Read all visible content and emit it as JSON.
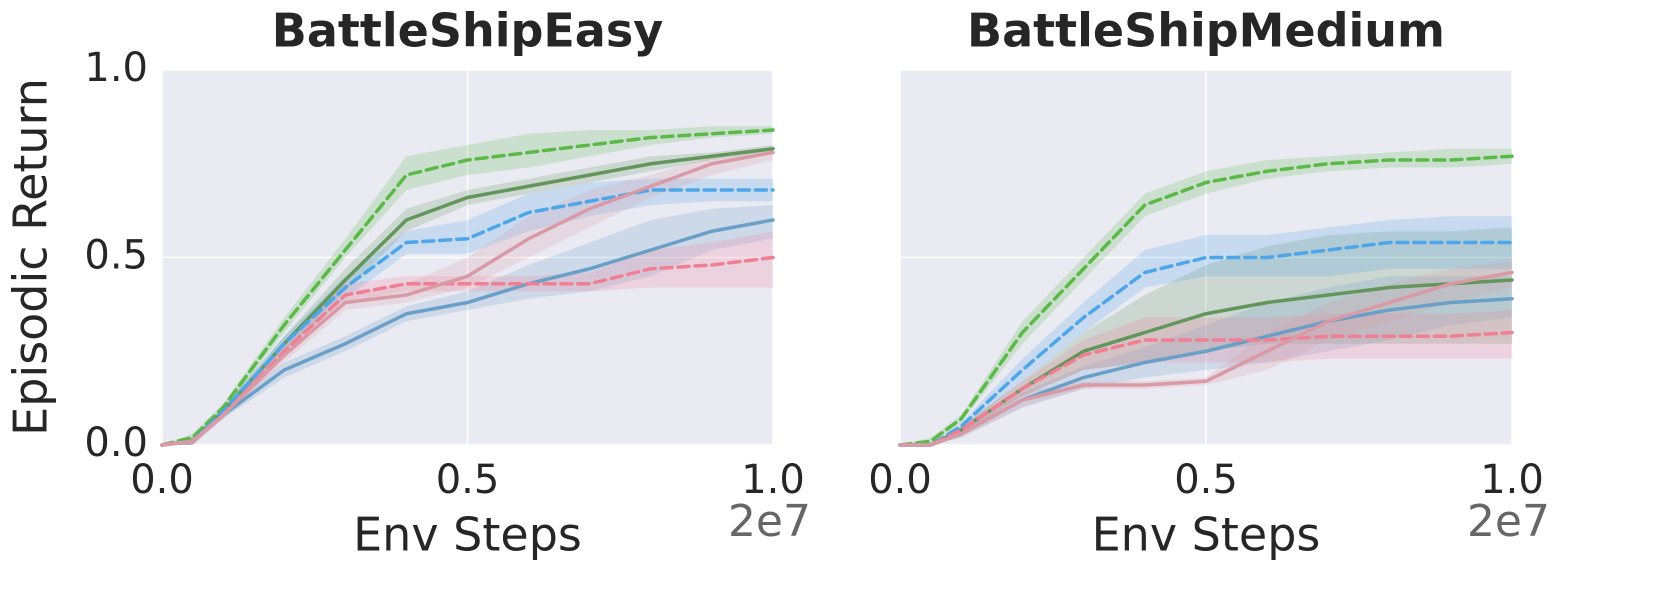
{
  "chart_data": [
    {
      "type": "line",
      "title": "BattleShipEasy",
      "xlabel": "Env Steps",
      "ylabel": "Episodic Return",
      "x_offset_label": "2e7",
      "x": [
        0,
        0.05,
        0.1,
        0.2,
        0.3,
        0.4,
        0.5,
        0.6,
        0.7,
        0.8,
        0.9,
        1.0
      ],
      "xlim": [
        0,
        1.0
      ],
      "ylim": [
        0,
        1.0
      ],
      "xticks": [
        {
          "value": 0,
          "label": "0.0"
        },
        0.5,
        {
          "value": 1.0,
          "label": "1.0"
        }
      ],
      "yticks": [
        {
          "value": 0,
          "label": "0.0"
        },
        0.5,
        {
          "value": 1.0,
          "label": "1.0"
        }
      ],
      "ytick_labels": true,
      "grid": true,
      "series": [
        {
          "color": "#5ab947",
          "dashed": true,
          "values": [
            0,
            0.02,
            0.1,
            0.32,
            0.52,
            0.72,
            0.76,
            0.78,
            0.8,
            0.82,
            0.83,
            0.84
          ],
          "lower": [
            0,
            0.01,
            0.09,
            0.3,
            0.5,
            0.68,
            0.72,
            0.74,
            0.77,
            0.8,
            0.82,
            0.83
          ],
          "upper": [
            0,
            0.03,
            0.11,
            0.34,
            0.55,
            0.77,
            0.8,
            0.83,
            0.84,
            0.84,
            0.85,
            0.85
          ]
        },
        {
          "color": "#62965a",
          "dashed": false,
          "values": [
            0,
            0.01,
            0.09,
            0.27,
            0.44,
            0.6,
            0.66,
            0.69,
            0.72,
            0.75,
            0.77,
            0.79
          ],
          "lower": [
            0,
            0,
            0.08,
            0.25,
            0.41,
            0.57,
            0.64,
            0.67,
            0.7,
            0.73,
            0.76,
            0.78
          ],
          "upper": [
            0,
            0.02,
            0.1,
            0.29,
            0.47,
            0.63,
            0.68,
            0.71,
            0.74,
            0.77,
            0.78,
            0.8
          ]
        },
        {
          "color": "#4da6e8",
          "dashed": true,
          "values": [
            0,
            0.01,
            0.09,
            0.27,
            0.42,
            0.54,
            0.55,
            0.62,
            0.65,
            0.68,
            0.68,
            0.68
          ],
          "lower": [
            0,
            0,
            0.08,
            0.25,
            0.39,
            0.51,
            0.51,
            0.57,
            0.61,
            0.64,
            0.65,
            0.65
          ],
          "upper": [
            0,
            0.02,
            0.1,
            0.29,
            0.45,
            0.57,
            0.6,
            0.67,
            0.7,
            0.71,
            0.71,
            0.71
          ]
        },
        {
          "color": "#6a9fc8",
          "dashed": false,
          "values": [
            0,
            0.01,
            0.08,
            0.2,
            0.27,
            0.35,
            0.38,
            0.43,
            0.47,
            0.52,
            0.57,
            0.6
          ],
          "lower": [
            0,
            0,
            0.07,
            0.18,
            0.25,
            0.33,
            0.36,
            0.39,
            0.41,
            0.45,
            0.52,
            0.55
          ],
          "upper": [
            0,
            0.02,
            0.09,
            0.22,
            0.29,
            0.37,
            0.41,
            0.48,
            0.54,
            0.6,
            0.63,
            0.64
          ]
        },
        {
          "color": "#f07f94",
          "dashed": true,
          "values": [
            0,
            0.01,
            0.08,
            0.25,
            0.4,
            0.43,
            0.43,
            0.43,
            0.43,
            0.47,
            0.48,
            0.5
          ],
          "lower": [
            0,
            0,
            0.07,
            0.23,
            0.38,
            0.41,
            0.41,
            0.41,
            0.41,
            0.42,
            0.42,
            0.42
          ],
          "upper": [
            0,
            0.02,
            0.09,
            0.27,
            0.43,
            0.45,
            0.45,
            0.45,
            0.46,
            0.52,
            0.54,
            0.57
          ]
        },
        {
          "color": "#d99aa6",
          "dashed": false,
          "values": [
            0,
            0.01,
            0.08,
            0.24,
            0.38,
            0.4,
            0.45,
            0.55,
            0.63,
            0.69,
            0.75,
            0.78
          ],
          "lower": [
            0,
            0,
            0.07,
            0.22,
            0.36,
            0.38,
            0.42,
            0.5,
            0.58,
            0.66,
            0.72,
            0.76
          ],
          "upper": [
            0,
            0.02,
            0.09,
            0.26,
            0.4,
            0.43,
            0.5,
            0.61,
            0.68,
            0.72,
            0.77,
            0.79
          ]
        }
      ]
    },
    {
      "type": "line",
      "title": "BattleShipMedium",
      "xlabel": "Env Steps",
      "x_offset_label": "2e7",
      "x": [
        0,
        0.05,
        0.1,
        0.2,
        0.3,
        0.4,
        0.5,
        0.6,
        0.7,
        0.8,
        0.9,
        1.0
      ],
      "xlim": [
        0,
        1.0
      ],
      "ylim": [
        0,
        1.0
      ],
      "xticks": [
        {
          "value": 0,
          "label": "0.0"
        },
        0.5,
        {
          "value": 1.0,
          "label": "1.0"
        }
      ],
      "yticks": [
        0,
        0.5,
        1.0
      ],
      "ytick_labels": false,
      "grid": true,
      "series": [
        {
          "color": "#5ab947",
          "dashed": true,
          "values": [
            0,
            0.01,
            0.07,
            0.3,
            0.47,
            0.64,
            0.7,
            0.73,
            0.75,
            0.76,
            0.76,
            0.77
          ],
          "lower": [
            0,
            0,
            0.06,
            0.27,
            0.44,
            0.61,
            0.67,
            0.71,
            0.73,
            0.74,
            0.74,
            0.75
          ],
          "upper": [
            0,
            0.02,
            0.08,
            0.33,
            0.5,
            0.67,
            0.73,
            0.76,
            0.77,
            0.78,
            0.79,
            0.79
          ]
        },
        {
          "color": "#62965a",
          "dashed": false,
          "values": [
            0,
            0,
            0.04,
            0.15,
            0.25,
            0.3,
            0.35,
            0.38,
            0.4,
            0.42,
            0.43,
            0.44
          ],
          "lower": [
            0,
            0,
            0.03,
            0.13,
            0.2,
            0.22,
            0.25,
            0.27,
            0.27,
            0.27,
            0.27,
            0.27
          ],
          "upper": [
            0,
            0,
            0.05,
            0.17,
            0.3,
            0.4,
            0.48,
            0.53,
            0.56,
            0.57,
            0.57,
            0.58
          ]
        },
        {
          "color": "#4da6e8",
          "dashed": true,
          "values": [
            0,
            0,
            0.05,
            0.2,
            0.34,
            0.46,
            0.5,
            0.5,
            0.52,
            0.54,
            0.54,
            0.54
          ],
          "lower": [
            0,
            0,
            0.04,
            0.17,
            0.3,
            0.42,
            0.45,
            0.45,
            0.45,
            0.47,
            0.47,
            0.47
          ],
          "upper": [
            0,
            0,
            0.06,
            0.23,
            0.38,
            0.52,
            0.56,
            0.56,
            0.58,
            0.6,
            0.61,
            0.61
          ]
        },
        {
          "color": "#6a9fc8",
          "dashed": false,
          "values": [
            0,
            0,
            0.03,
            0.12,
            0.18,
            0.22,
            0.25,
            0.29,
            0.33,
            0.36,
            0.38,
            0.39
          ],
          "lower": [
            0,
            0,
            0.02,
            0.1,
            0.15,
            0.18,
            0.2,
            0.22,
            0.25,
            0.28,
            0.32,
            0.34
          ],
          "upper": [
            0,
            0,
            0.04,
            0.14,
            0.21,
            0.26,
            0.32,
            0.38,
            0.42,
            0.45,
            0.45,
            0.45
          ]
        },
        {
          "color": "#f07f94",
          "dashed": true,
          "values": [
            0,
            0,
            0.04,
            0.15,
            0.24,
            0.28,
            0.28,
            0.28,
            0.29,
            0.29,
            0.29,
            0.3
          ],
          "lower": [
            0,
            0,
            0.03,
            0.13,
            0.2,
            0.22,
            0.22,
            0.22,
            0.23,
            0.23,
            0.23,
            0.23
          ],
          "upper": [
            0,
            0,
            0.05,
            0.17,
            0.28,
            0.34,
            0.34,
            0.34,
            0.35,
            0.35,
            0.35,
            0.36
          ]
        },
        {
          "color": "#d99aa6",
          "dashed": false,
          "values": [
            0,
            0,
            0.03,
            0.12,
            0.16,
            0.16,
            0.17,
            0.25,
            0.33,
            0.38,
            0.43,
            0.46
          ],
          "lower": [
            0,
            0,
            0.02,
            0.1,
            0.15,
            0.15,
            0.16,
            0.2,
            0.28,
            0.33,
            0.38,
            0.42
          ],
          "upper": [
            0,
            0,
            0.04,
            0.14,
            0.17,
            0.17,
            0.18,
            0.3,
            0.38,
            0.43,
            0.47,
            0.49
          ]
        }
      ]
    }
  ]
}
